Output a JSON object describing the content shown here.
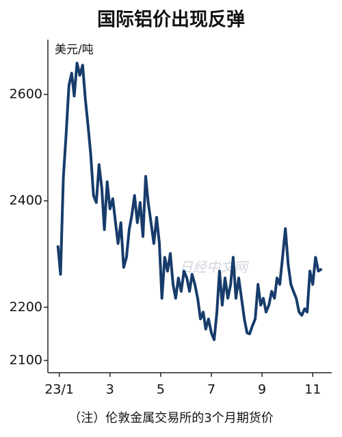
{
  "chart_data": {
    "type": "line",
    "title": "国际铝价出现反弹",
    "y_label": "美元/吨",
    "note": "（注）伦敦金属交易所的3个月期货价",
    "watermark": "日经中文网",
    "xlim": [
      0.55,
      11.75
    ],
    "xticks": [
      {
        "value": 1,
        "label": "23/1"
      },
      3,
      5,
      7,
      9,
      11
    ],
    "ylim": [
      2077,
      2703
    ],
    "yticks": [
      2100,
      2200,
      2400,
      2600
    ],
    "series": [
      {
        "color": "#173c6b",
        "x": [
          0.95,
          1.05,
          1.16,
          1.27,
          1.38,
          1.49,
          1.59,
          1.7,
          1.81,
          1.92,
          2.03,
          2.14,
          2.24,
          2.35,
          2.46,
          2.57,
          2.68,
          2.78,
          2.89,
          3.0,
          3.11,
          3.22,
          3.32,
          3.43,
          3.54,
          3.65,
          3.76,
          3.86,
          3.97,
          4.08,
          4.19,
          4.3,
          4.41,
          4.51,
          4.62,
          4.73,
          4.84,
          4.95,
          5.05,
          5.16,
          5.27,
          5.38,
          5.49,
          5.59,
          5.7,
          5.81,
          5.92,
          6.03,
          6.14,
          6.24,
          6.35,
          6.46,
          6.57,
          6.68,
          6.78,
          6.89,
          7.0,
          7.11,
          7.22,
          7.32,
          7.43,
          7.54,
          7.65,
          7.76,
          7.86,
          7.97,
          8.08,
          8.19,
          8.3,
          8.41,
          8.51,
          8.62,
          8.73,
          8.84,
          8.95,
          9.05,
          9.16,
          9.27,
          9.38,
          9.49,
          9.59,
          9.7,
          9.81,
          9.92,
          10.03,
          10.14,
          10.24,
          10.35,
          10.46,
          10.57,
          10.68,
          10.78,
          10.89,
          11.0,
          11.11,
          11.22,
          11.32
        ],
        "values": [
          2314,
          2262,
          2443,
          2526,
          2617,
          2640,
          2597,
          2659,
          2636,
          2655,
          2591,
          2539,
          2488,
          2410,
          2397,
          2468,
          2423,
          2346,
          2436,
          2385,
          2404,
          2359,
          2320,
          2359,
          2275,
          2294,
          2346,
          2372,
          2410,
          2359,
          2397,
          2333,
          2446,
          2397,
          2359,
          2320,
          2369,
          2320,
          2217,
          2294,
          2268,
          2301,
          2243,
          2217,
          2255,
          2230,
          2268,
          2255,
          2230,
          2262,
          2243,
          2217,
          2178,
          2191,
          2159,
          2178,
          2152,
          2139,
          2191,
          2268,
          2204,
          2255,
          2217,
          2243,
          2294,
          2217,
          2255,
          2217,
          2178,
          2152,
          2150,
          2165,
          2178,
          2243,
          2204,
          2217,
          2191,
          2204,
          2230,
          2217,
          2255,
          2243,
          2294,
          2348,
          2281,
          2243,
          2230,
          2217,
          2191,
          2185,
          2197,
          2191,
          2268,
          2243,
          2294,
          2268,
          2271
        ]
      }
    ]
  }
}
